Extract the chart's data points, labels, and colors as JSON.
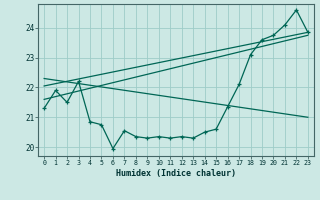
{
  "title": "",
  "xlabel": "Humidex (Indice chaleur)",
  "xlim": [
    -0.5,
    23.5
  ],
  "ylim": [
    19.7,
    24.8
  ],
  "yticks": [
    20,
    21,
    22,
    23,
    24
  ],
  "xticks": [
    0,
    1,
    2,
    3,
    4,
    5,
    6,
    7,
    8,
    9,
    10,
    11,
    12,
    13,
    14,
    15,
    16,
    17,
    18,
    19,
    20,
    21,
    22,
    23
  ],
  "bg_color": "#cce8e4",
  "grid_color": "#9eccc8",
  "line_color": "#006655",
  "data_x": [
    0,
    1,
    2,
    3,
    4,
    5,
    6,
    7,
    8,
    9,
    10,
    11,
    12,
    13,
    14,
    15,
    16,
    17,
    18,
    19,
    20,
    21,
    22,
    23
  ],
  "data_y": [
    21.3,
    21.9,
    21.5,
    22.2,
    20.85,
    20.75,
    19.95,
    20.55,
    20.35,
    20.3,
    20.35,
    20.3,
    20.35,
    20.3,
    20.5,
    20.6,
    21.35,
    22.1,
    23.1,
    23.6,
    23.75,
    24.1,
    24.6,
    23.85
  ],
  "trend1_x": [
    0,
    23
  ],
  "trend1_y": [
    22.05,
    23.85
  ],
  "trend2_x": [
    0,
    23
  ],
  "trend2_y": [
    21.6,
    23.75
  ],
  "trend3_x": [
    0,
    23
  ],
  "trend3_y": [
    22.3,
    21.0
  ]
}
